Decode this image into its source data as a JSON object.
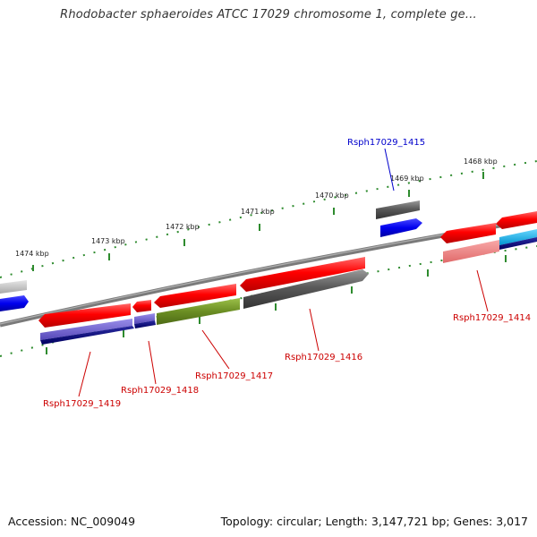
{
  "title": "Rhodobacter sphaeroides ATCC 17029 chromosome 1, complete ge...",
  "footer": {
    "accession": "Accession: NC_009049",
    "stats": "Topology: circular; Length: 3,147,721 bp; Genes: 3,017"
  },
  "scale_labels": [
    "1468 kbp",
    "1469 kbp",
    "1470 kbp",
    "1471 kbp",
    "1472 kbp",
    "1473 kbp",
    "1474 kbp"
  ],
  "gene_labels": [
    {
      "text": "Rsph17029_1415",
      "color": "#0000cc"
    },
    {
      "text": "Rsph17029_1414",
      "color": "#cc0000"
    },
    {
      "text": "Rsph17029_1416",
      "color": "#cc0000"
    },
    {
      "text": "Rsph17029_1417",
      "color": "#cc0000"
    },
    {
      "text": "Rsph17029_1418",
      "color": "#cc0000"
    },
    {
      "text": "Rsph17029_1419",
      "color": "#cc0000"
    }
  ],
  "colors": {
    "backbone": "#7a7a7a",
    "tick_marks": "#2e8b2e",
    "cds_red": "#ff0000",
    "cds_dark_gray": "#555555",
    "cds_blue": "#0000ee",
    "cds_olive": "#6b8e23",
    "cds_purple": "#6a5acd",
    "cds_navy": "#000080",
    "cds_pink": "#f08080",
    "cds_cyan": "#00bfff",
    "cds_light_gray": "#bbbbbb"
  }
}
